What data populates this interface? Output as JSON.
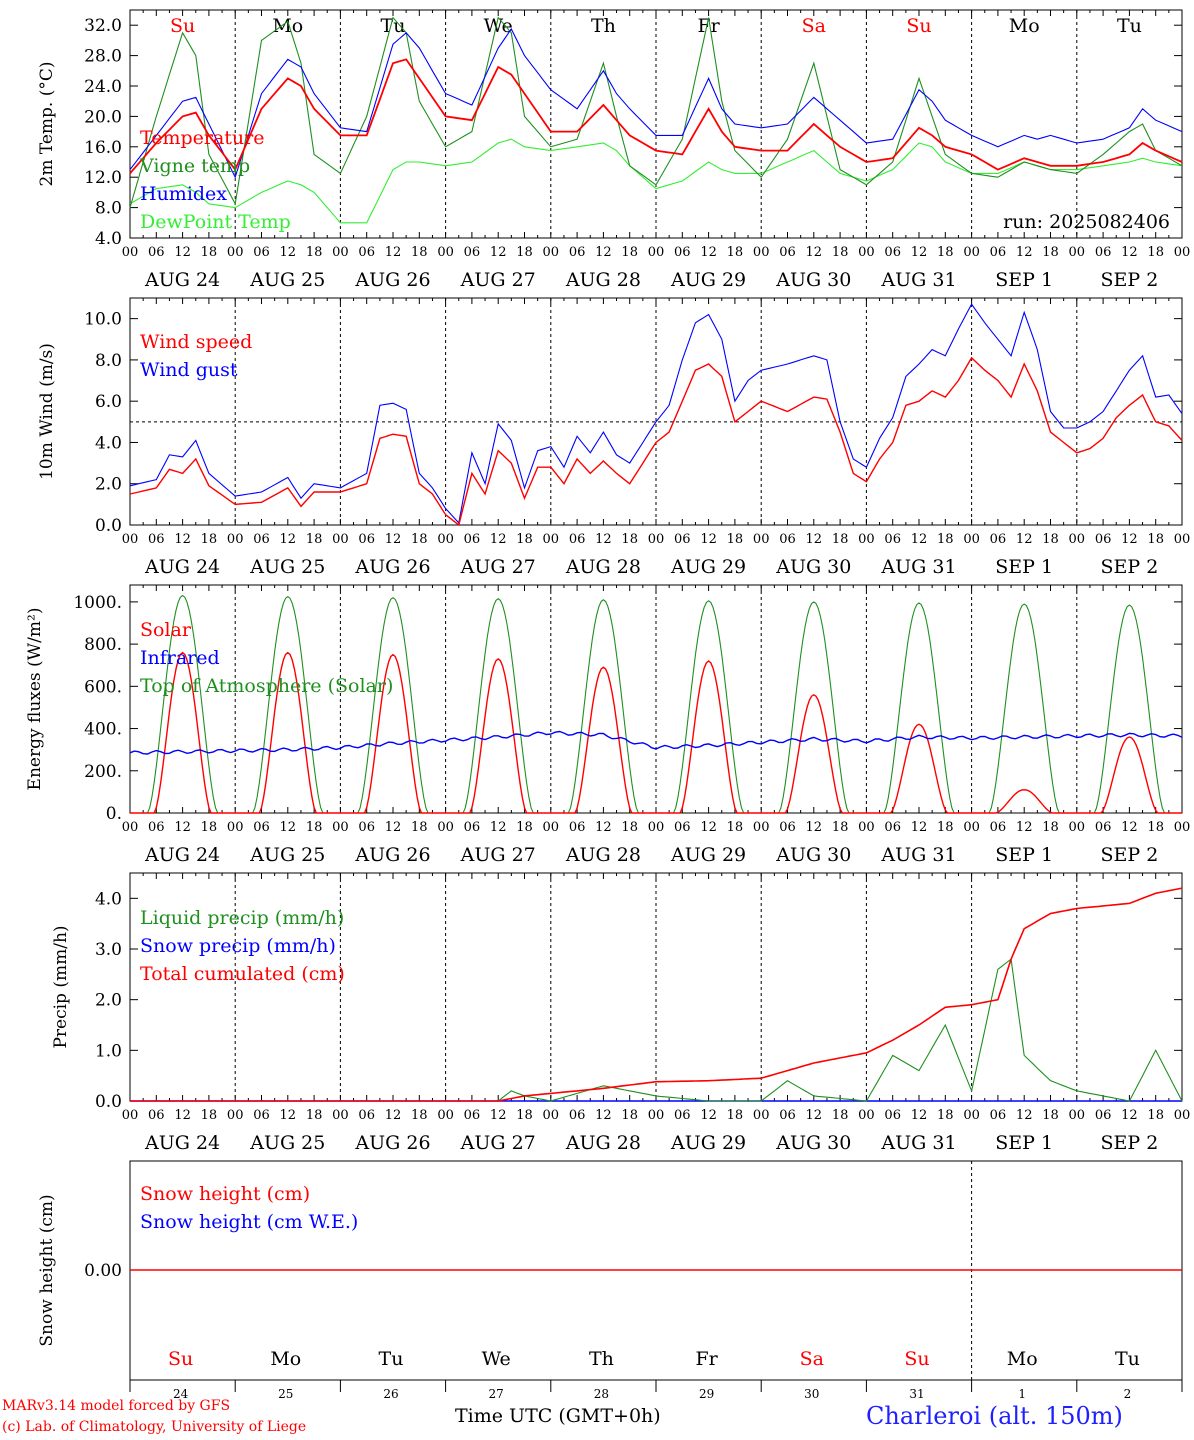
{
  "colors": {
    "red": "#ff0000",
    "green": "#1f8f1f",
    "blue": "#0000ff",
    "lightgreen": "#33ee33",
    "black": "#000000",
    "station": "#1f1fff"
  },
  "day_labels": [
    "AUG 24",
    "AUG 25",
    "AUG 26",
    "AUG 27",
    "AUG 28",
    "AUG 29",
    "AUG 30",
    "AUG 31",
    "SEP  1",
    "SEP  2"
  ],
  "weekdays": [
    {
      "label": "Su",
      "color": "red"
    },
    {
      "label": "Mo",
      "color": "black"
    },
    {
      "label": "Tu",
      "color": "black"
    },
    {
      "label": "We",
      "color": "black"
    },
    {
      "label": "Th",
      "color": "black"
    },
    {
      "label": "Fr",
      "color": "black"
    },
    {
      "label": "Sa",
      "color": "red"
    },
    {
      "label": "Su",
      "color": "red"
    },
    {
      "label": "Mo",
      "color": "black"
    },
    {
      "label": "Tu",
      "color": "black"
    }
  ],
  "hour_ticks": [
    "00",
    "06",
    "12",
    "18"
  ],
  "day_numbers": [
    "24",
    "25",
    "26",
    "27",
    "28",
    "29",
    "30",
    "31",
    "1",
    "2"
  ],
  "footer": {
    "line1": "MARv3.14 model forced by GFS",
    "line2": "(c) Lab. of Climatology, University of Liege",
    "xaxis_title": "Time UTC (GMT+0h)",
    "station": "Charleroi (alt. 150m)"
  },
  "chart_data": [
    {
      "type": "line",
      "ylabel": "2m Temp. (°C)",
      "ylim": [
        4.0,
        34.0
      ],
      "yticks": [
        "4.0",
        "8.0",
        "12.0",
        "16.0",
        "20.0",
        "24.0",
        "28.0",
        "32.0"
      ],
      "annotation": "run: 2025082406",
      "x_hours": [
        0,
        6,
        12,
        15,
        18,
        24,
        30,
        36,
        39,
        42,
        48,
        54,
        60,
        63,
        66,
        72,
        78,
        84,
        87,
        90,
        96,
        102,
        108,
        111,
        114,
        120,
        126,
        132,
        135,
        138,
        144,
        150,
        156,
        159,
        162,
        168,
        174,
        180,
        183,
        186,
        192,
        198,
        204,
        207,
        210,
        216,
        222,
        228,
        231,
        234,
        240
      ],
      "series": [
        {
          "name": "Temperature",
          "color": "red",
          "values": [
            12.5,
            16.5,
            20.0,
            20.5,
            17.5,
            13.0,
            21.0,
            25.0,
            24.0,
            21.0,
            17.5,
            17.5,
            27.0,
            27.5,
            25.0,
            20.0,
            19.5,
            26.5,
            25.5,
            23.0,
            18.0,
            18.0,
            21.5,
            19.5,
            17.5,
            15.5,
            15.0,
            21.0,
            18.0,
            16.0,
            15.5,
            15.5,
            19.0,
            17.5,
            16.0,
            14.0,
            14.5,
            18.5,
            17.5,
            16.0,
            15.0,
            13.0,
            14.5,
            14.0,
            13.5,
            13.5,
            14.0,
            15.0,
            16.5,
            15.5,
            14.0
          ]
        },
        {
          "name": "Vigne temp",
          "color": "green",
          "values": [
            8.0,
            20.0,
            31.0,
            28.0,
            15.0,
            8.5,
            30.0,
            32.5,
            27.0,
            15.0,
            12.5,
            20.0,
            33.0,
            31.0,
            22.0,
            16.0,
            18.0,
            33.0,
            31.0,
            20.0,
            16.0,
            17.0,
            27.0,
            20.0,
            13.5,
            11.0,
            17.0,
            33.0,
            22.0,
            15.5,
            12.0,
            17.0,
            27.0,
            20.0,
            13.0,
            11.0,
            14.0,
            25.0,
            20.0,
            15.0,
            12.5,
            12.0,
            14.0,
            13.5,
            13.0,
            12.5,
            15.0,
            18.0,
            19.0,
            15.5,
            13.5
          ]
        },
        {
          "name": "Humidex",
          "color": "blue",
          "values": [
            13.0,
            17.5,
            22.0,
            22.5,
            19.0,
            12.0,
            23.0,
            27.5,
            26.5,
            23.0,
            18.5,
            18.0,
            29.5,
            31.0,
            29.0,
            23.0,
            21.5,
            29.0,
            31.5,
            28.0,
            23.5,
            21.0,
            26.0,
            23.0,
            21.0,
            17.5,
            17.5,
            25.0,
            21.0,
            19.0,
            18.5,
            19.0,
            22.5,
            21.0,
            19.5,
            16.5,
            17.0,
            23.5,
            22.0,
            19.5,
            17.5,
            16.0,
            17.5,
            17.0,
            17.5,
            16.5,
            17.0,
            18.5,
            21.0,
            19.5,
            18.0
          ]
        },
        {
          "name": "DewPoint Temp",
          "color": "lightgreen",
          "values": [
            8.5,
            10.5,
            11.0,
            10.0,
            8.5,
            8.0,
            10.0,
            11.5,
            11.0,
            10.0,
            6.0,
            6.0,
            13.0,
            14.0,
            14.0,
            13.5,
            14.0,
            16.5,
            17.0,
            16.0,
            15.5,
            16.0,
            16.5,
            15.5,
            13.5,
            10.5,
            11.5,
            14.0,
            13.0,
            12.5,
            12.5,
            14.0,
            15.5,
            14.0,
            12.5,
            11.5,
            13.0,
            16.5,
            16.0,
            14.0,
            12.5,
            12.5,
            14.0,
            13.5,
            13.0,
            13.0,
            13.5,
            14.0,
            14.5,
            14.0,
            13.5
          ]
        }
      ]
    },
    {
      "type": "line",
      "ylabel": "10m Wind (m/s)",
      "ylim": [
        0.0,
        11.0
      ],
      "yticks": [
        "0.0",
        "2.0",
        "4.0",
        "6.0",
        "8.0",
        "10.0"
      ],
      "reference_line": 5.0,
      "x_hours": [
        0,
        6,
        9,
        12,
        15,
        18,
        24,
        30,
        36,
        39,
        42,
        48,
        54,
        57,
        60,
        63,
        66,
        69,
        72,
        75,
        78,
        81,
        84,
        87,
        90,
        93,
        96,
        99,
        102,
        105,
        108,
        111,
        114,
        117,
        120,
        123,
        126,
        129,
        132,
        135,
        138,
        141,
        144,
        150,
        156,
        159,
        162,
        165,
        168,
        171,
        174,
        177,
        180,
        183,
        186,
        189,
        192,
        195,
        198,
        201,
        204,
        207,
        210,
        213,
        216,
        219,
        222,
        225,
        228,
        231,
        234,
        237,
        240
      ],
      "series": [
        {
          "name": "Wind speed",
          "color": "red",
          "values": [
            1.5,
            1.8,
            2.7,
            2.5,
            3.2,
            1.9,
            1.0,
            1.1,
            1.8,
            0.9,
            1.6,
            1.6,
            2.0,
            4.2,
            4.4,
            4.3,
            2.0,
            1.5,
            0.5,
            0.0,
            2.5,
            1.5,
            3.6,
            3.0,
            1.3,
            2.8,
            2.8,
            2.0,
            3.2,
            2.5,
            3.1,
            2.5,
            2.0,
            3.0,
            4.0,
            4.5,
            6.0,
            7.5,
            7.8,
            7.2,
            5.0,
            5.5,
            6.0,
            5.5,
            6.2,
            6.1,
            4.5,
            2.5,
            2.1,
            3.2,
            4.0,
            5.8,
            6.0,
            6.5,
            6.2,
            7.0,
            8.1,
            7.5,
            7.0,
            6.2,
            7.8,
            6.5,
            4.5,
            4.0,
            3.5,
            3.7,
            4.2,
            5.2,
            5.8,
            6.3,
            5.0,
            4.8,
            4.1
          ]
        },
        {
          "name": "Wind gust",
          "color": "blue",
          "values": [
            1.9,
            2.2,
            3.4,
            3.3,
            4.1,
            2.5,
            1.4,
            1.6,
            2.3,
            1.3,
            2.0,
            1.8,
            2.5,
            5.8,
            5.9,
            5.6,
            2.5,
            1.8,
            0.8,
            0.1,
            3.5,
            2.0,
            4.9,
            4.1,
            1.8,
            3.6,
            3.8,
            2.8,
            4.3,
            3.5,
            4.5,
            3.4,
            3.0,
            4.0,
            5.0,
            5.8,
            8.0,
            9.8,
            10.2,
            9.0,
            6.0,
            7.0,
            7.5,
            7.8,
            8.2,
            8.0,
            5.0,
            3.2,
            2.8,
            4.2,
            5.2,
            7.2,
            7.8,
            8.5,
            8.2,
            9.5,
            10.7,
            9.8,
            9.0,
            8.2,
            10.3,
            8.5,
            5.5,
            4.7,
            4.7,
            5.0,
            5.5,
            6.5,
            7.5,
            8.2,
            6.2,
            6.3,
            5.4
          ]
        }
      ]
    },
    {
      "type": "line",
      "ylabel": "Energy fluxes (W/m²)",
      "ylim": [
        0,
        1080
      ],
      "yticks": [
        "0.",
        "200.",
        "400.",
        "600.",
        "800.",
        "1000."
      ],
      "top_of_atmosphere_peaks": [
        1030,
        1025,
        1020,
        1015,
        1010,
        1005,
        1000,
        995,
        990,
        985
      ],
      "solar_peaks": [
        760,
        760,
        750,
        730,
        690,
        720,
        560,
        420,
        110,
        360
      ],
      "x_hours": [
        0,
        12,
        24,
        36,
        48,
        60,
        72,
        84,
        96,
        108,
        120,
        132,
        144,
        156,
        168,
        180,
        192,
        204,
        216,
        228,
        240
      ],
      "series": [
        {
          "name": "Solar",
          "color": "red"
        },
        {
          "name": "Infrared",
          "color": "blue",
          "values": [
            285,
            290,
            295,
            300,
            310,
            330,
            345,
            360,
            380,
            370,
            310,
            320,
            335,
            350,
            340,
            360,
            355,
            360,
            365,
            370,
            365
          ]
        },
        {
          "name": "Top of Atmosphere (Solar)",
          "color": "green"
        }
      ]
    },
    {
      "type": "line",
      "ylabel": "Precip (mm/h)",
      "ylim": [
        0.0,
        4.5
      ],
      "yticks": [
        "0.0",
        "1.0",
        "2.0",
        "3.0",
        "4.0"
      ],
      "x_hours": [
        0,
        84,
        87,
        90,
        96,
        108,
        120,
        132,
        144,
        150,
        156,
        168,
        174,
        180,
        186,
        192,
        198,
        201,
        204,
        210,
        216,
        228,
        234,
        240
      ],
      "series": [
        {
          "name": "Liquid precip (mm/h)",
          "color": "green",
          "values": [
            0.0,
            0.0,
            0.2,
            0.1,
            0.0,
            0.3,
            0.1,
            0.0,
            0.0,
            0.4,
            0.1,
            0.0,
            0.9,
            0.6,
            1.5,
            0.2,
            2.6,
            2.8,
            0.9,
            0.4,
            0.2,
            0.0,
            1.0,
            0.0
          ]
        },
        {
          "name": "Snow precip (mm/h)",
          "color": "blue",
          "values": [
            0.0,
            0.0,
            0.0,
            0.0,
            0.0,
            0.0,
            0.0,
            0.0,
            0.0,
            0.0,
            0.0,
            0.0,
            0.0,
            0.0,
            0.0,
            0.0,
            0.0,
            0.0,
            0.0,
            0.0,
            0.0,
            0.0,
            0.0,
            0.0
          ]
        },
        {
          "name": "Total cumulated (cm)",
          "color": "red",
          "values": [
            0.0,
            0.0,
            0.05,
            0.1,
            0.15,
            0.25,
            0.38,
            0.4,
            0.45,
            0.6,
            0.75,
            0.95,
            1.2,
            1.5,
            1.85,
            1.9,
            2.0,
            2.8,
            3.4,
            3.7,
            3.8,
            3.9,
            4.1,
            4.2
          ]
        }
      ]
    },
    {
      "type": "line",
      "ylabel": "Snow height (cm)",
      "yticks": [
        "0.00"
      ],
      "series": [
        {
          "name": "Snow height (cm)",
          "color": "red",
          "values": [
            0.0,
            0.0
          ]
        },
        {
          "name": "Snow height (cm W.E.)",
          "color": "blue"
        }
      ]
    }
  ]
}
